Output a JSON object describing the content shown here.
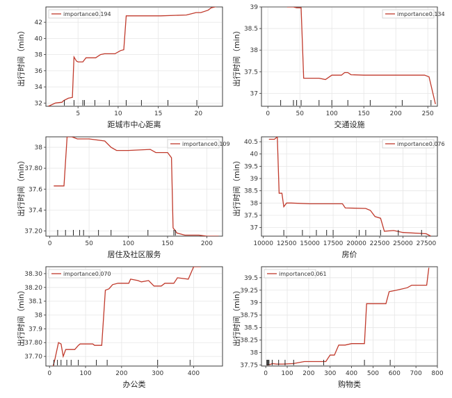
{
  "colors": {
    "curve": "#c0392b",
    "rug": "#222222",
    "grid": "#e6e6e6"
  },
  "chart_data": [
    {
      "type": "line",
      "xlabel": "距城市中心距离",
      "ylabel": "出行时间（min）",
      "legend": "importance0.194",
      "legend_position": "top-left",
      "grid": true,
      "xlim": [
        1.0,
        23.0
      ],
      "ylim": [
        31.6,
        43.9
      ],
      "xticks": [
        5,
        10,
        15,
        20
      ],
      "yticks": [
        32,
        34,
        36,
        38,
        40,
        42
      ],
      "x": [
        1.3,
        2.2,
        3.0,
        3.2,
        3.8,
        4.3,
        4.5,
        4.8,
        5.0,
        5.6,
        6.0,
        7.2,
        7.8,
        8.3,
        9.2,
        9.6,
        10.3,
        10.7,
        11.0,
        12.6,
        15.3,
        18.5,
        19.7,
        20.3,
        21.2,
        21.6,
        22.5
      ],
      "values": [
        31.6,
        32.0,
        32.1,
        32.3,
        32.6,
        32.7,
        37.7,
        37.2,
        37.1,
        37.1,
        37.6,
        37.6,
        38.0,
        38.1,
        38.1,
        38.1,
        38.5,
        38.6,
        42.8,
        42.8,
        42.8,
        42.9,
        43.2,
        43.2,
        43.5,
        43.8,
        44.0
      ],
      "rug": [
        3.3,
        4.5,
        5.6,
        5.8,
        7.1,
        8.9,
        11.0,
        12.9,
        16.2,
        19.8
      ]
    },
    {
      "type": "line",
      "xlabel": "交通设施",
      "ylabel": "出行时间（min）",
      "legend": "importance0.134",
      "legend_position": "top-right",
      "grid": true,
      "xlim": [
        -10,
        265
      ],
      "ylim": [
        36.7,
        39.0
      ],
      "xticks": [
        0,
        50,
        100,
        150,
        200,
        250
      ],
      "yticks": [
        37.0,
        37.5,
        38.0,
        38.5,
        39.0
      ],
      "x": [
        30,
        40,
        45,
        52,
        56,
        60,
        80,
        90,
        100,
        115,
        120,
        125,
        130,
        150,
        200,
        245,
        252,
        262
      ],
      "values": [
        39.0,
        39.0,
        38.98,
        38.98,
        37.35,
        37.35,
        37.35,
        37.32,
        37.42,
        37.42,
        37.48,
        37.48,
        37.43,
        37.42,
        37.42,
        37.42,
        37.38,
        36.75
      ],
      "rug": [
        20,
        40,
        45,
        52,
        80,
        100,
        125,
        160,
        210,
        255
      ]
    },
    {
      "type": "line",
      "xlabel": "居住及社区服务",
      "ylabel": "出行时间（min）",
      "legend": "importance0.109",
      "legend_position": "top-right",
      "grid": true,
      "xlim": [
        -5,
        220
      ],
      "ylim": [
        37.15,
        38.1
      ],
      "xticks": [
        0,
        50,
        100,
        150,
        200
      ],
      "yticks": [
        37.2,
        37.4,
        37.6,
        37.8,
        38.0
      ],
      "x": [
        5,
        18,
        22,
        28,
        35,
        50,
        70,
        78,
        85,
        100,
        128,
        135,
        150,
        155,
        157,
        162,
        172,
        190,
        200,
        215
      ],
      "values": [
        37.63,
        37.63,
        38.1,
        38.1,
        38.08,
        38.08,
        38.06,
        38.0,
        37.97,
        37.97,
        37.98,
        37.95,
        37.95,
        37.9,
        37.23,
        37.18,
        37.16,
        37.16,
        37.15,
        37.15
      ],
      "rug": [
        10,
        20,
        30,
        38,
        43,
        62,
        78,
        125,
        158,
        160
      ]
    },
    {
      "type": "line",
      "xlabel": "房价",
      "ylabel": "出行时间（min）",
      "legend": "importance0.076",
      "legend_position": "top-right",
      "grid": true,
      "xlim": [
        9800,
        28700
      ],
      "ylim": [
        36.65,
        40.7
      ],
      "xticks": [
        10000,
        12500,
        15000,
        17500,
        20000,
        22500,
        25000,
        27500
      ],
      "yticks": [
        37.0,
        37.5,
        38.0,
        38.5,
        39.0,
        39.5,
        40.0,
        40.5
      ],
      "x": [
        10600,
        11200,
        11500,
        11700,
        12000,
        12200,
        12500,
        13000,
        15000,
        17000,
        18500,
        18800,
        21000,
        21500,
        22000,
        22600,
        23000,
        24000,
        25000,
        27500,
        28000
      ],
      "values": [
        40.6,
        40.6,
        40.7,
        38.4,
        38.4,
        37.85,
        38.0,
        38.0,
        37.97,
        37.97,
        37.97,
        37.8,
        37.78,
        37.7,
        37.45,
        37.38,
        36.85,
        36.88,
        36.8,
        36.75,
        36.65
      ],
      "rug": [
        12200,
        14200,
        15700,
        16800,
        17500,
        20300,
        21000,
        22600,
        24500,
        27000
      ]
    },
    {
      "type": "line",
      "xlabel": "办公类",
      "ylabel": "出行时间（min）",
      "legend": "importance0.070",
      "legend_position": "top-left",
      "grid": true,
      "xlim": [
        -10,
        480
      ],
      "ylim": [
        37.63,
        38.35
      ],
      "xticks": [
        0,
        100,
        200,
        300,
        400
      ],
      "yticks": [
        37.7,
        37.8,
        37.9,
        38.0,
        38.1,
        38.2,
        38.3
      ],
      "x": [
        10,
        15,
        25,
        32,
        38,
        45,
        55,
        70,
        80,
        85,
        110,
        120,
        125,
        145,
        155,
        165,
        175,
        190,
        220,
        225,
        245,
        255,
        275,
        290,
        310,
        320,
        345,
        355,
        385,
        400,
        420
      ],
      "values": [
        37.63,
        37.68,
        37.8,
        37.79,
        37.7,
        37.75,
        37.75,
        37.75,
        37.78,
        37.79,
        37.79,
        37.79,
        37.78,
        37.78,
        38.18,
        38.19,
        38.22,
        38.23,
        38.23,
        38.26,
        38.25,
        38.24,
        38.25,
        38.21,
        38.21,
        38.23,
        38.23,
        38.27,
        38.26,
        38.35,
        38.35
      ],
      "rug": [
        12,
        22,
        32,
        48,
        60,
        80,
        130,
        160,
        300,
        390
      ]
    },
    {
      "type": "line",
      "xlabel": "购物类",
      "ylabel": "出行时间（min）",
      "legend": "importance0.061",
      "legend_position": "top-left",
      "grid": true,
      "xlim": [
        -20,
        800
      ],
      "ylim": [
        37.73,
        39.72
      ],
      "xticks": [
        0,
        100,
        200,
        300,
        400,
        500,
        600,
        700,
        800
      ],
      "yticks": [
        37.75,
        38.0,
        38.25,
        38.5,
        38.75,
        39.0,
        39.25,
        39.5
      ],
      "x": [
        5,
        20,
        30,
        50,
        80,
        130,
        180,
        280,
        300,
        320,
        340,
        370,
        400,
        460,
        470,
        560,
        575,
        610,
        660,
        680,
        750,
        760
      ],
      "values": [
        37.75,
        37.76,
        37.78,
        37.77,
        37.77,
        37.78,
        37.82,
        37.82,
        37.95,
        37.95,
        38.15,
        38.15,
        38.18,
        38.18,
        38.98,
        38.98,
        39.22,
        39.25,
        39.3,
        39.35,
        39.35,
        39.7
      ],
      "rug": [
        5,
        8,
        12,
        15,
        30,
        60,
        90,
        130,
        270,
        460,
        580
      ]
    }
  ]
}
